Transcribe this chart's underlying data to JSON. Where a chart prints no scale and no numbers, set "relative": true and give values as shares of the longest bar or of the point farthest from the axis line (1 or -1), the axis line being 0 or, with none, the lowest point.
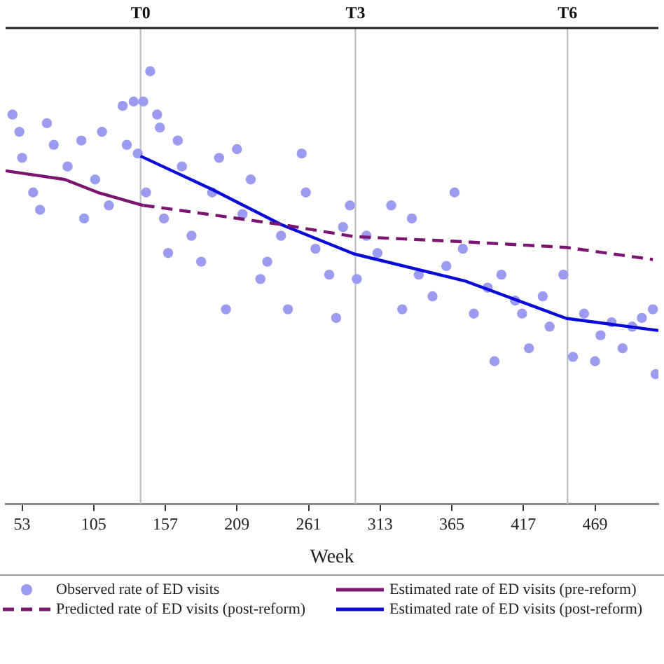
{
  "chart_data": {
    "type": "scatter",
    "relative": true,
    "xlabel": "Week",
    "xlim": [
      41,
      515
    ],
    "xticks": [
      53,
      105,
      157,
      209,
      261,
      313,
      365,
      417,
      469
    ],
    "tick_labels": "x",
    "grid": false,
    "legend": "bottom",
    "marker": "circle",
    "ref_lines": [
      {
        "axis": "x",
        "value": 139,
        "label": "T0",
        "color": "#c0c0c8"
      },
      {
        "axis": "x",
        "value": 295,
        "label": "T3",
        "color": "#c0c0c8"
      },
      {
        "axis": "x",
        "value": 449,
        "label": "T6",
        "color": "#c0c0c8"
      }
    ],
    "series": [
      {
        "name": "Observed rate of ED visits",
        "type": "scatter",
        "color": "#9b9bf0",
        "x": [
          46,
          51,
          53,
          61,
          66,
          71,
          76,
          86,
          96,
          98,
          106,
          111,
          116,
          126,
          129,
          134,
          137,
          141,
          143,
          146,
          151,
          153,
          156,
          159,
          166,
          169,
          176,
          183,
          191,
          196,
          201,
          209,
          213,
          219,
          226,
          231,
          241,
          246,
          256,
          259,
          266,
          276,
          281,
          286,
          291,
          296,
          303,
          311,
          321,
          329,
          336,
          341,
          351,
          361,
          367,
          373,
          381,
          391,
          396,
          401,
          411,
          416,
          421,
          431,
          436,
          446,
          453,
          461,
          469,
          473,
          481,
          489,
          496,
          503,
          511,
          513
        ],
        "values": [
          0.9,
          0.86,
          0.8,
          0.72,
          0.68,
          0.88,
          0.83,
          0.78,
          0.84,
          0.66,
          0.75,
          0.86,
          0.69,
          0.92,
          0.83,
          0.93,
          0.81,
          0.93,
          0.72,
          1.0,
          0.9,
          0.87,
          0.66,
          0.58,
          0.84,
          0.78,
          0.62,
          0.56,
          0.72,
          0.8,
          0.45,
          0.82,
          0.67,
          0.75,
          0.52,
          0.56,
          0.62,
          0.45,
          0.81,
          0.72,
          0.59,
          0.53,
          0.43,
          0.64,
          0.69,
          0.52,
          0.62,
          0.58,
          0.69,
          0.45,
          0.66,
          0.53,
          0.48,
          0.55,
          0.72,
          0.59,
          0.44,
          0.5,
          0.33,
          0.53,
          0.47,
          0.44,
          0.36,
          0.48,
          0.41,
          0.53,
          0.34,
          0.44,
          0.33,
          0.39,
          0.42,
          0.36,
          0.41,
          0.43,
          0.45,
          0.3
        ]
      },
      {
        "name": "Estimated rate of ED visits (pre-reform)",
        "type": "line",
        "marker": "none",
        "line_style": "solid",
        "color": "#7a1570",
        "x": [
          41,
          84,
          108,
          141
        ],
        "values": [
          0.77,
          0.75,
          0.72,
          0.69
        ]
      },
      {
        "name": "Predicted rate of ED visits (post-reform)",
        "type": "line",
        "marker": "none",
        "line_style": "dashed",
        "color": "#7a1570",
        "x": [
          141,
          151,
          241,
          294,
          374,
          448,
          511
        ],
        "values": [
          0.69,
          0.686,
          0.646,
          0.618,
          0.606,
          0.593,
          0.565
        ]
      },
      {
        "name": "Estimated rate of ED visits (post-reform)",
        "type": "line",
        "marker": "none",
        "line_style": "solid",
        "color": "#0a0ad8",
        "x": [
          139,
          191,
          241,
          294,
          374,
          448,
          515
        ],
        "values": [
          0.804,
          0.727,
          0.646,
          0.578,
          0.516,
          0.429,
          0.401
        ]
      }
    ]
  }
}
